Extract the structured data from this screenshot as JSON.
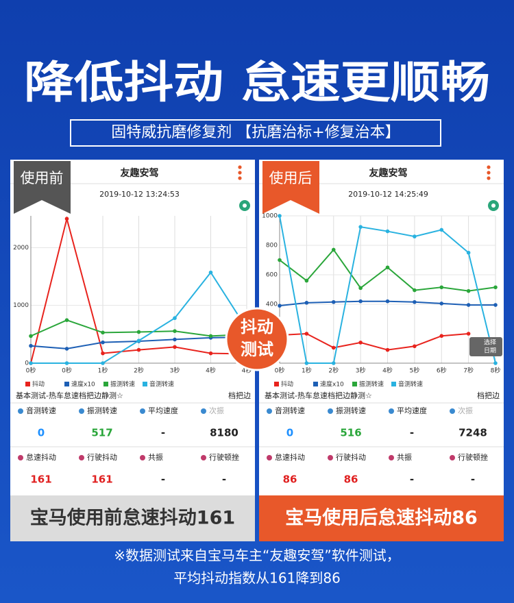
{
  "header": {
    "title": "降低抖动 怠速更顺畅",
    "subtitle": "固特威抗磨修复剂 【抗磨治标+修复治本】"
  },
  "badge": [
    "抖动",
    "测试"
  ],
  "panels": [
    {
      "tag": "使用前",
      "app_title": "友趣安驾",
      "timestamp": "2019-10-12 13:24:53",
      "test_name": "基本测试-热车怠速档把边静测☆",
      "position": "档把边",
      "stats": [
        [
          {
            "label": "音测转速",
            "value": 0
          },
          {
            "label": "振测转速",
            "value": 517
          },
          {
            "label": "平均速度",
            "value": "-"
          },
          {
            "label": "次振",
            "value": 8180
          }
        ],
        [
          {
            "label": "怠速抖动",
            "value": 161
          },
          {
            "label": "行驶抖动",
            "value": 161
          },
          {
            "label": "共振",
            "value": "-"
          },
          {
            "label": "行驶顿挫",
            "value": "-"
          }
        ]
      ],
      "caption": "宝马使用前怠速抖动161"
    },
    {
      "tag": "使用后",
      "app_title": "友趣安驾",
      "timestamp": "2019-10-12 14:25:49",
      "test_name": "基本测试-热车怠速档把边静测☆",
      "position": "档把边",
      "stats": [
        [
          {
            "label": "音测转速",
            "value": 0
          },
          {
            "label": "振测转速",
            "value": 516
          },
          {
            "label": "平均速度",
            "value": "-"
          },
          {
            "label": "次振",
            "value": 7248
          }
        ],
        [
          {
            "label": "怠速抖动",
            "value": 86
          },
          {
            "label": "行驶抖动",
            "value": 86
          },
          {
            "label": "共振",
            "value": "-"
          },
          {
            "label": "行驶顿挫",
            "value": "-"
          }
        ]
      ],
      "date_button": [
        "选择",
        "日期"
      ],
      "caption": "宝马使用后怠速抖动86"
    }
  ],
  "chart_data": [
    {
      "type": "line",
      "categories": [
        "0秒",
        "0秒",
        "1秒",
        "2秒",
        "3秒",
        "4秒",
        "4秒"
      ],
      "series": [
        {
          "name": "抖动",
          "color": "#e8231d",
          "values": [
            0,
            2500,
            170,
            230,
            280,
            170,
            160
          ]
        },
        {
          "name": "速度x10",
          "color": "#1d5fb5",
          "values": [
            300,
            250,
            360,
            380,
            410,
            440,
            450
          ]
        },
        {
          "name": "振测转速",
          "color": "#2aa63a",
          "values": [
            470,
            745,
            530,
            540,
            555,
            470,
            500
          ]
        },
        {
          "name": "音测转速",
          "color": "#29b2e0",
          "values": [
            0,
            0,
            0,
            390,
            780,
            1570,
            600
          ]
        }
      ],
      "ylim": [
        0,
        2550
      ],
      "yticks": [
        0,
        1000,
        2000
      ],
      "grid": true
    },
    {
      "type": "line",
      "categories": [
        "0秒",
        "1秒",
        "2秒",
        "3秒",
        "4秒",
        "5秒",
        "6秒",
        "7秒",
        "8秒"
      ],
      "series": [
        {
          "name": "抖动",
          "color": "#e8231d",
          "values": [
            190,
            200,
            105,
            140,
            90,
            115,
            185,
            200,
            null
          ]
        },
        {
          "name": "速度x10",
          "color": "#1d5fb5",
          "values": [
            390,
            410,
            415,
            420,
            420,
            415,
            405,
            395,
            395
          ]
        },
        {
          "name": "振测转速",
          "color": "#2aa63a",
          "values": [
            700,
            560,
            770,
            510,
            650,
            495,
            515,
            490,
            515
          ]
        },
        {
          "name": "音测转速",
          "color": "#29b2e0",
          "values": [
            1000,
            0,
            0,
            925,
            895,
            860,
            905,
            750,
            0
          ]
        }
      ],
      "ylim": [
        0,
        1000
      ],
      "yticks": [
        400,
        600,
        800,
        1000
      ],
      "grid": true
    }
  ],
  "footer": [
    "※数据测试来自宝马车主“友趣安驾”软件测试，",
    "平均抖动指数从161降到86"
  ]
}
